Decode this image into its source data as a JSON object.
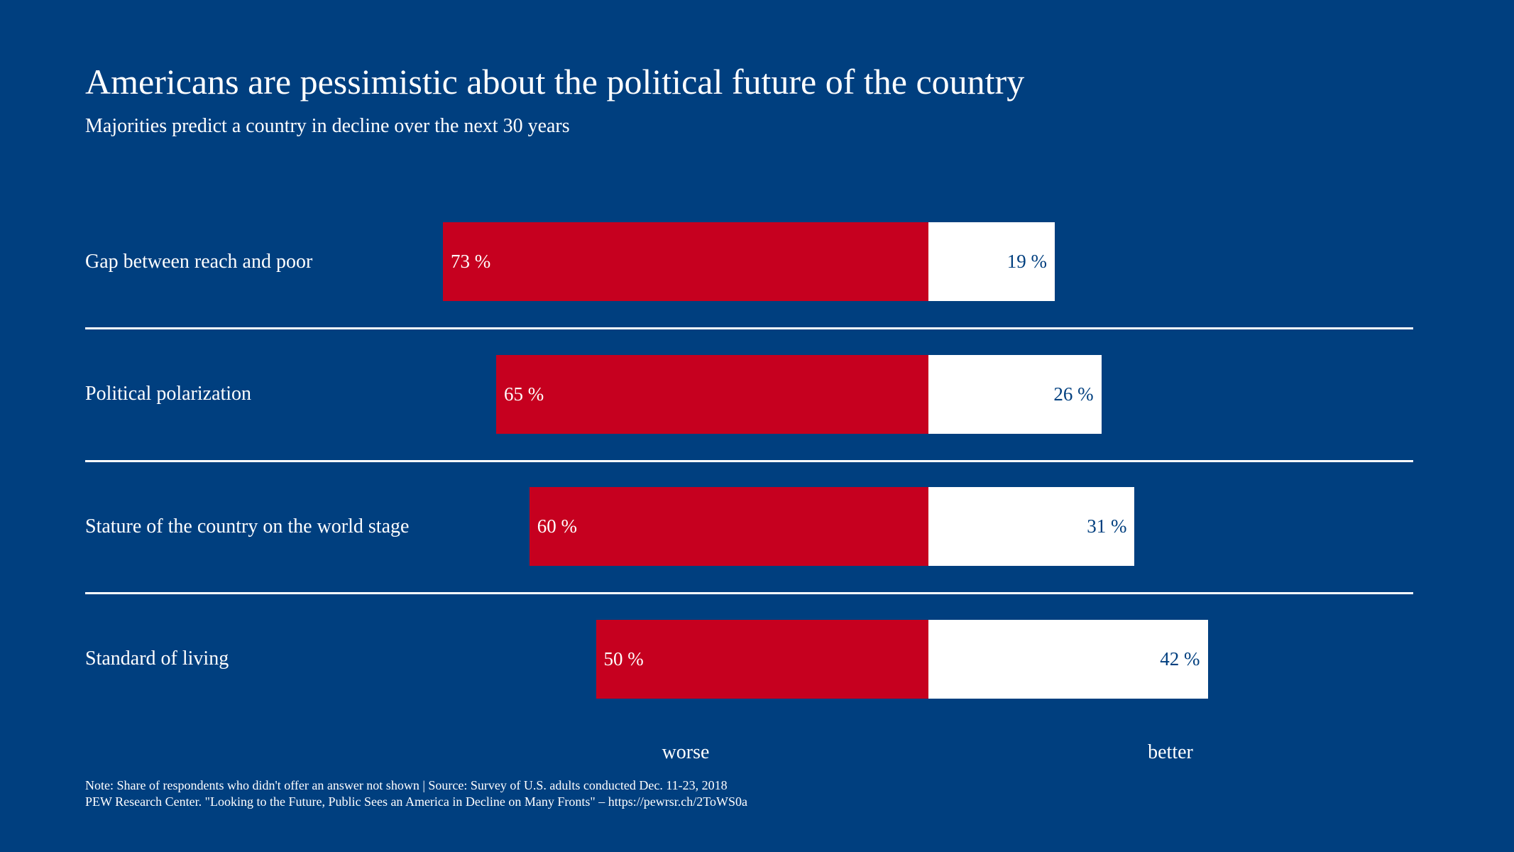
{
  "chart_data": {
    "type": "bar",
    "orientation": "horizontal-diverging",
    "title": "Americans are pessimistic about the political future of the country",
    "subtitle": "Majorities predict a country in decline over the next 30 years",
    "categories": [
      "Gap between reach and poor",
      "Political polarization",
      "Stature of the country on the world stage",
      "Standard of living"
    ],
    "series": [
      {
        "name": "worse",
        "values": [
          73,
          65,
          60,
          50
        ],
        "labels": [
          "73 %",
          "65 %",
          "60 %",
          "50 %"
        ],
        "color": "#c6001f"
      },
      {
        "name": "better",
        "values": [
          19,
          26,
          31,
          42
        ],
        "labels": [
          "19 %",
          "26 %",
          "31 %",
          "42 %"
        ],
        "color": "#ffffff"
      }
    ],
    "unit": "%",
    "grid": false,
    "background": "#003f7f"
  },
  "footer": {
    "note": "Note: Share of respondents who didn't offer an answer not shown | Source: Survey of U.S. adults conducted Dec. 11-23, 2018",
    "source": "PEW Research Center. \"Looking to the Future, Public Sees an America in Decline on Many Fronts\" – https://pewrsr.ch/2ToWS0a"
  }
}
